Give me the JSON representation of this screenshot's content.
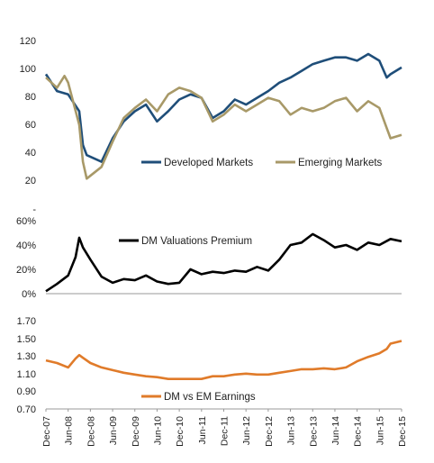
{
  "chart_data": [
    {
      "type": "line",
      "ylim": [
        20,
        120
      ],
      "yticks": [
        "120",
        "100",
        "80",
        "60",
        "40",
        "20",
        "-"
      ],
      "legend_position": "bottom-inside",
      "colors": {
        "Developed Markets": "#1f4e79",
        "Emerging Markets": "#a89968"
      },
      "series": [
        {
          "name": "Developed Markets",
          "x": [
            "Dec-07",
            "Mar-08",
            "Jun-08",
            "Sep-08",
            "Oct-08",
            "Nov-08",
            "Mar-09",
            "Jun-09",
            "Sep-09",
            "Dec-09",
            "Mar-10",
            "Jun-10",
            "Sep-10",
            "Dec-10",
            "Mar-11",
            "Jun-11",
            "Sep-11",
            "Dec-11",
            "Mar-12",
            "Jun-12",
            "Sep-12",
            "Dec-12",
            "Mar-13",
            "Jun-13",
            "Sep-13",
            "Dec-13",
            "Mar-14",
            "Jun-14",
            "Sep-14",
            "Dec-14",
            "Mar-15",
            "Jun-15",
            "Aug-15",
            "Sep-15",
            "Dec-15"
          ],
          "values": [
            100,
            90,
            88,
            78,
            58,
            52,
            48,
            62,
            72,
            78,
            82,
            72,
            78,
            85,
            88,
            86,
            74,
            78,
            85,
            82,
            86,
            90,
            95,
            98,
            102,
            106,
            108,
            110,
            110,
            108,
            112,
            108,
            98,
            100,
            104
          ]
        },
        {
          "name": "Emerging Markets",
          "x": [
            "Dec-07",
            "Mar-08",
            "May-08",
            "Jun-08",
            "Sep-08",
            "Oct-08",
            "Nov-08",
            "Mar-09",
            "Jun-09",
            "Sep-09",
            "Dec-09",
            "Mar-10",
            "Jun-10",
            "Sep-10",
            "Dec-10",
            "Mar-11",
            "Jun-11",
            "Sep-11",
            "Dec-11",
            "Mar-12",
            "Jun-12",
            "Sep-12",
            "Dec-12",
            "Mar-13",
            "Jun-13",
            "Sep-13",
            "Dec-13",
            "Mar-14",
            "Jun-14",
            "Sep-14",
            "Dec-14",
            "Mar-15",
            "Jun-15",
            "Aug-15",
            "Sep-15",
            "Dec-15"
          ],
          "values": [
            98,
            92,
            99,
            95,
            70,
            48,
            38,
            45,
            60,
            74,
            80,
            85,
            78,
            88,
            92,
            90,
            86,
            72,
            76,
            82,
            78,
            82,
            86,
            84,
            76,
            80,
            78,
            80,
            84,
            86,
            78,
            84,
            80,
            68,
            62,
            64
          ]
        }
      ]
    },
    {
      "type": "line",
      "ylim": [
        0,
        60
      ],
      "yticks": [
        "60%",
        "40%",
        "20%",
        "0%"
      ],
      "legend_position": "top-inside",
      "colors": {
        "DM Valuations Premium": "#000000"
      },
      "series": [
        {
          "name": "DM Valuations Premium",
          "x": [
            "Dec-07",
            "Mar-08",
            "Jun-08",
            "Aug-08",
            "Sep-08",
            "Oct-08",
            "Dec-08",
            "Mar-09",
            "Jun-09",
            "Sep-09",
            "Dec-09",
            "Mar-10",
            "Jun-10",
            "Sep-10",
            "Dec-10",
            "Mar-11",
            "Jun-11",
            "Sep-11",
            "Dec-11",
            "Mar-12",
            "Jun-12",
            "Sep-12",
            "Dec-12",
            "Mar-13",
            "Jun-13",
            "Sep-13",
            "Dec-13",
            "Mar-14",
            "Jun-14",
            "Sep-14",
            "Dec-14",
            "Mar-15",
            "Jun-15",
            "Sep-15",
            "Dec-15"
          ],
          "values": [
            2,
            8,
            15,
            30,
            46,
            38,
            28,
            14,
            9,
            12,
            11,
            15,
            10,
            8,
            9,
            20,
            16,
            18,
            17,
            19,
            18,
            22,
            19,
            28,
            40,
            42,
            49,
            44,
            38,
            40,
            36,
            42,
            40,
            45,
            43
          ]
        }
      ]
    },
    {
      "type": "line",
      "ylim": [
        0.7,
        1.7
      ],
      "yticks": [
        "1.70",
        "1.50",
        "1.30",
        "1.10",
        "0.90",
        "0.70"
      ],
      "xticks": [
        "Dec-07",
        "Jun-08",
        "Dec-08",
        "Jun-09",
        "Dec-09",
        "Jun-10",
        "Dec-10",
        "Jun-11",
        "Dec-11",
        "Jun-12",
        "Dec-12",
        "Jun-13",
        "Dec-13",
        "Jun-14",
        "Dec-14",
        "Jun-15",
        "Dec-15"
      ],
      "legend_position": "bottom-inside",
      "colors": {
        "DM vs EM Earnings": "#e07b2a"
      },
      "series": [
        {
          "name": "DM vs EM Earnings",
          "x": [
            "Dec-07",
            "Mar-08",
            "Jun-08",
            "Aug-08",
            "Sep-08",
            "Oct-08",
            "Dec-08",
            "Mar-09",
            "Jun-09",
            "Sep-09",
            "Dec-09",
            "Mar-10",
            "Jun-10",
            "Sep-10",
            "Dec-10",
            "Mar-11",
            "Jun-11",
            "Sep-11",
            "Dec-11",
            "Mar-12",
            "Jun-12",
            "Sep-12",
            "Dec-12",
            "Mar-13",
            "Jun-13",
            "Sep-13",
            "Dec-13",
            "Mar-14",
            "Jun-14",
            "Sep-14",
            "Dec-14",
            "Mar-15",
            "Jun-15",
            "Aug-15",
            "Sep-15",
            "Dec-15"
          ],
          "values": [
            1.25,
            1.22,
            1.17,
            1.27,
            1.31,
            1.28,
            1.22,
            1.17,
            1.14,
            1.11,
            1.09,
            1.07,
            1.06,
            1.04,
            1.04,
            1.04,
            1.04,
            1.07,
            1.07,
            1.09,
            1.1,
            1.09,
            1.09,
            1.11,
            1.13,
            1.15,
            1.15,
            1.16,
            1.15,
            1.17,
            1.24,
            1.29,
            1.33,
            1.38,
            1.44,
            1.47
          ]
        }
      ]
    }
  ]
}
